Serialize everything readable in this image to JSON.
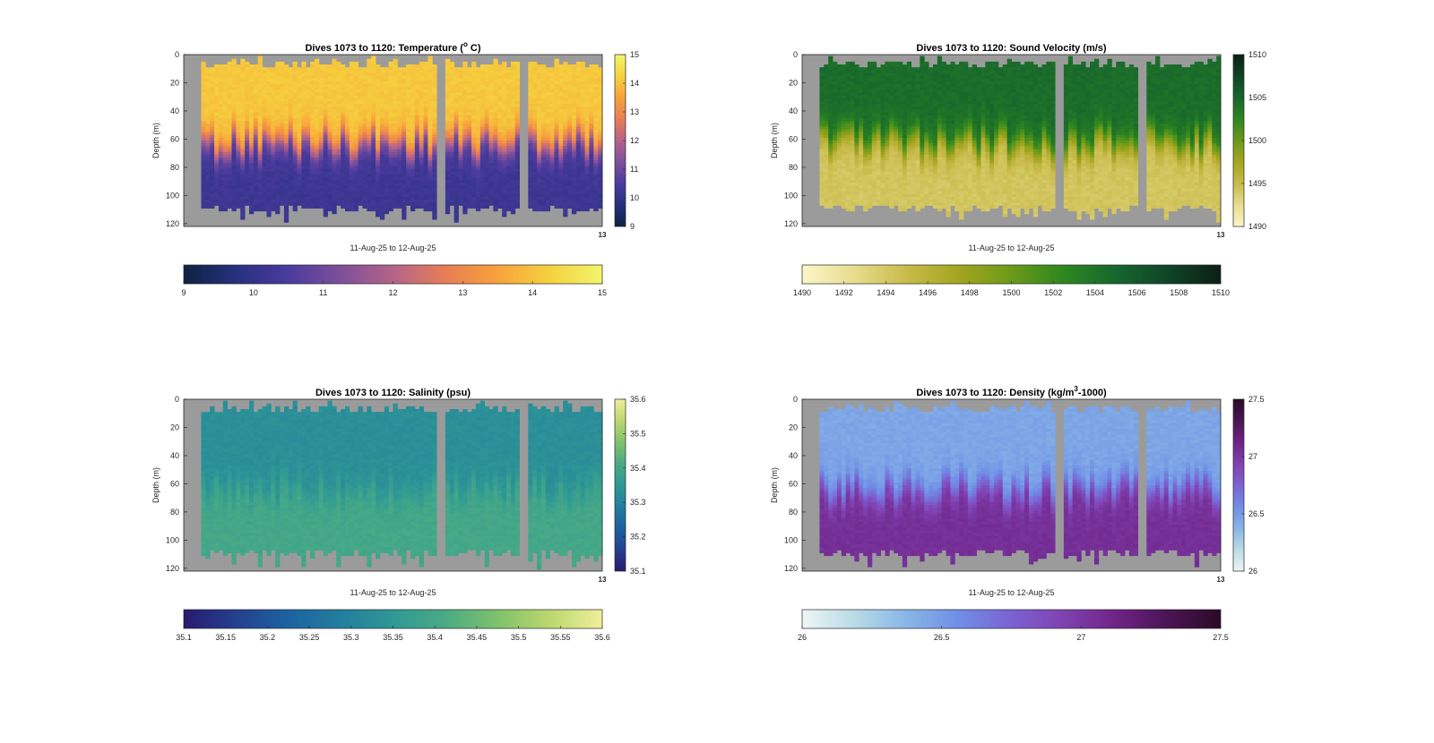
{
  "figure": {
    "colors": {
      "background": "#ffffff",
      "plot_background": "#9b9b9b",
      "axis": "#262626"
    },
    "xlabel": "11-Aug-25 to 12-Aug-25",
    "x_end_tick": "13",
    "ylabel": "Depth (m)",
    "depth_ticks": [
      0,
      20,
      40,
      60,
      80,
      100,
      120
    ]
  },
  "chart_data": [
    {
      "type": "heatmap",
      "title_prefix": "Dives 1073 to 1120: Temperature (",
      "title_sup": "o",
      "title_suffix": " C)",
      "ylim": [
        0,
        122
      ],
      "y_reversed": true,
      "clim": [
        9,
        15
      ],
      "cbar_ticks": [
        "9",
        "10",
        "11",
        "12",
        "13",
        "14",
        "15"
      ],
      "hbar_ticks": [
        "9",
        "10",
        "11",
        "12",
        "13",
        "14",
        "15"
      ],
      "colormap": [
        "#0e2240",
        "#26307e",
        "#4b3b9e",
        "#7d4f9a",
        "#b4648a",
        "#e77e55",
        "#f8a23c",
        "#f5d23e",
        "#f3f56d"
      ],
      "layers": {
        "surface": 14.1,
        "thermo_depth": 62,
        "deep": 10.2
      },
      "value_range": {
        "min": 10.0,
        "max": 14.2
      }
    },
    {
      "type": "heatmap",
      "title_prefix": "Dives 1073 to 1120: Sound Velocity (m/s)",
      "title_sup": "",
      "title_suffix": "",
      "ylim": [
        0,
        122
      ],
      "y_reversed": true,
      "clim": [
        1490,
        1510
      ],
      "cbar_ticks": [
        "1490",
        "1495",
        "1500",
        "1505",
        "1510"
      ],
      "hbar_ticks": [
        "1490",
        "1492",
        "1494",
        "1496",
        "1498",
        "1500",
        "1502",
        "1504",
        "1506",
        "1508",
        "1510"
      ],
      "colormap": [
        "#fcf6c8",
        "#e8dc8e",
        "#c8bb4a",
        "#a3a51f",
        "#6b9a1a",
        "#2e861f",
        "#16662d",
        "#0f4427",
        "#0b1f14"
      ],
      "layers": {
        "surface": 1504.5,
        "thermo_depth": 62,
        "deep": 1494.2
      },
      "value_range": {
        "min": 1492,
        "max": 1505
      }
    },
    {
      "type": "heatmap",
      "title_prefix": "Dives 1073 to 1120: Salinity (psu)",
      "title_sup": "",
      "title_suffix": "",
      "ylim": [
        0,
        122
      ],
      "y_reversed": true,
      "clim": [
        35.1,
        35.6
      ],
      "cbar_ticks": [
        "35.1",
        "35.2",
        "35.3",
        "35.4",
        "35.5",
        "35.6"
      ],
      "hbar_ticks": [
        "35.1",
        "35.15",
        "35.2",
        "35.25",
        "35.3",
        "35.35",
        "35.4",
        "35.45",
        "35.5",
        "35.55",
        "35.6"
      ],
      "colormap": [
        "#2a1a6e",
        "#24408f",
        "#1b62a0",
        "#237e9e",
        "#2f9895",
        "#4aab84",
        "#7fc26c",
        "#bcd76e",
        "#f1ef9c"
      ],
      "layers": {
        "surface": 35.33,
        "thermo_depth": 64,
        "deep": 35.4
      },
      "value_range": {
        "min": 35.2,
        "max": 35.46
      }
    },
    {
      "type": "heatmap",
      "title_prefix": "Dives 1073 to 1120: Density (kg/m",
      "title_sup": "3",
      "title_suffix": "-1000)",
      "ylim": [
        0,
        122
      ],
      "y_reversed": true,
      "clim": [
        26,
        27.5
      ],
      "cbar_ticks": [
        "26",
        "26.5",
        "27",
        "27.5"
      ],
      "hbar_ticks": [
        "26",
        "26.5",
        "27",
        "27.5"
      ],
      "colormap": [
        "#eef5f5",
        "#b9dbe6",
        "#88b6e6",
        "#6f8ee6",
        "#7c62d2",
        "#8041b0",
        "#6e2486",
        "#4a1452",
        "#2a0a26"
      ],
      "layers": {
        "surface": 26.45,
        "thermo_depth": 64,
        "deep": 27.05
      },
      "value_range": {
        "min": 26.3,
        "max": 27.2
      }
    }
  ]
}
